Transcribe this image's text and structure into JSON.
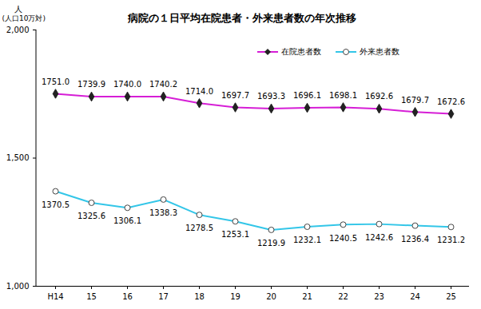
{
  "chart_data": {
    "type": "line",
    "title": "病院の１日平均在院患者・外来患者数の年次推移",
    "ylabel": "人",
    "annotations": [
      "(人口10万対)"
    ],
    "categories": [
      "H14",
      "15",
      "16",
      "17",
      "18",
      "19",
      "20",
      "21",
      "22",
      "23",
      "24",
      "25"
    ],
    "series": [
      {
        "name": "在院患者数",
        "color": "#d61ed6",
        "marker": "diamond",
        "values": [
          1751.0,
          1739.9,
          1740.0,
          1740.2,
          1714.0,
          1697.7,
          1693.3,
          1696.1,
          1698.1,
          1692.6,
          1679.7,
          1672.6
        ],
        "value_labels": [
          "1751.0",
          "1739.9",
          "1740.0",
          "1740.2",
          "1714.0",
          "1697.7",
          "1693.3",
          "1696.1",
          "1698.1",
          "1692.6",
          "1679.7",
          "1672.6"
        ]
      },
      {
        "name": "外来患者数",
        "color": "#33c6e8",
        "marker": "circle",
        "values": [
          1370.5,
          1325.6,
          1306.1,
          1338.3,
          1278.5,
          1253.1,
          1219.9,
          1232.1,
          1240.5,
          1242.6,
          1236.4,
          1231.2
        ],
        "value_labels": [
          "1370.5",
          "1325.6",
          "1306.1",
          "1338.3",
          "1278.5",
          "1253.1",
          "1219.9",
          "1232.1",
          "1240.5",
          "1242.6",
          "1236.4",
          "1231.2"
        ]
      }
    ],
    "ylim": [
      1000,
      2000
    ],
    "yticks": [
      {
        "value": 1000,
        "label": "1,000"
      },
      {
        "value": 1500,
        "label": "1,500"
      },
      {
        "value": 2000,
        "label": "2,000"
      }
    ],
    "grid": false,
    "legend": "top-right",
    "data_labels": true
  }
}
